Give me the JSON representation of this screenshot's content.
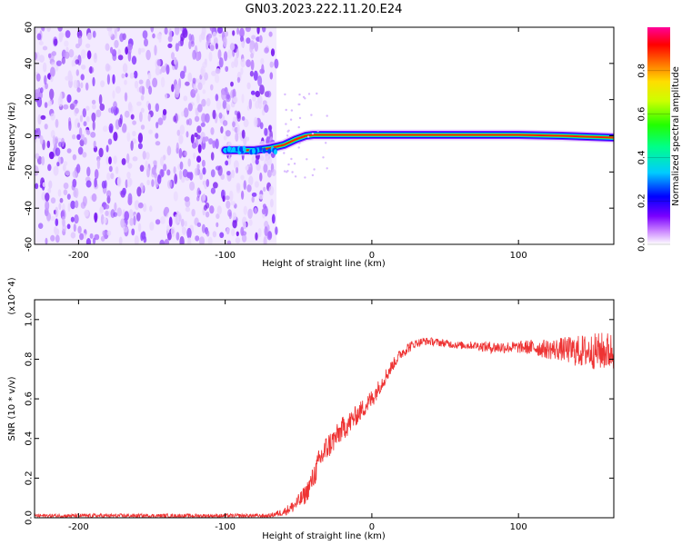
{
  "title": "GN03.2023.222.11.20.E24",
  "chart_data": [
    {
      "type": "heatmap",
      "xlabel": "Height of straight line (km)",
      "ylabel": "Frequency (Hz)",
      "xlim": [
        -230,
        165
      ],
      "ylim": [
        -60,
        60
      ],
      "x_ticks": [
        -200,
        -100,
        0,
        100
      ],
      "y_ticks": [
        -60,
        -40,
        -20,
        0,
        20,
        40,
        60
      ],
      "noise_region_x": [
        -230,
        -65
      ],
      "signal_track": [
        [
          -100,
          -8
        ],
        [
          -80,
          -8
        ],
        [
          -70,
          -7
        ],
        [
          -60,
          -5
        ],
        [
          -52,
          -2
        ],
        [
          -45,
          0
        ],
        [
          -40,
          0.5
        ],
        [
          0,
          0.5
        ],
        [
          100,
          0.5
        ],
        [
          130,
          0
        ],
        [
          165,
          -1
        ]
      ],
      "colorbar": {
        "label": "Normalized spectral amplitude",
        "range": [
          0,
          1
        ],
        "ticks": [
          0.0,
          0.2,
          0.4,
          0.6,
          0.8
        ]
      }
    },
    {
      "type": "line",
      "xlabel": "Height of straight line (km)",
      "ylabel": "SNR (10 * v/v)",
      "y_multiplier": "(x10^4)",
      "xlim": [
        -230,
        165
      ],
      "ylim": [
        0,
        1.1
      ],
      "x_ticks": [
        -200,
        -100,
        0,
        100
      ],
      "y_ticks": [
        0.0,
        0.2,
        0.4,
        0.6,
        0.8,
        1.0
      ],
      "color": "#ee3333",
      "series": [
        {
          "x": [
            -230,
            -200,
            -150,
            -100,
            -70,
            -60,
            -55,
            -50,
            -45,
            -40,
            -35,
            -30,
            -25,
            -20,
            -15,
            -10,
            -5,
            0,
            5,
            10,
            15,
            20,
            25,
            30,
            35,
            40,
            50,
            60,
            70,
            80,
            90,
            100,
            110,
            120,
            130,
            140,
            150,
            160,
            165
          ],
          "values": [
            0.01,
            0.01,
            0.01,
            0.01,
            0.01,
            0.03,
            0.05,
            0.08,
            0.12,
            0.2,
            0.3,
            0.36,
            0.4,
            0.45,
            0.48,
            0.52,
            0.56,
            0.6,
            0.66,
            0.72,
            0.78,
            0.83,
            0.86,
            0.88,
            0.89,
            0.89,
            0.88,
            0.87,
            0.87,
            0.86,
            0.86,
            0.86,
            0.86,
            0.85,
            0.85,
            0.84,
            0.84,
            0.84,
            0.84
          ],
          "noise_amplitude": [
            0.01,
            0.01,
            0.01,
            0.01,
            0.01,
            0.02,
            0.03,
            0.04,
            0.05,
            0.06,
            0.07,
            0.07,
            0.06,
            0.06,
            0.06,
            0.05,
            0.05,
            0.05,
            0.04,
            0.04,
            0.03,
            0.03,
            0.03,
            0.02,
            0.02,
            0.02,
            0.02,
            0.02,
            0.02,
            0.03,
            0.03,
            0.03,
            0.04,
            0.05,
            0.06,
            0.08,
            0.09,
            0.1,
            0.1
          ]
        }
      ]
    }
  ]
}
